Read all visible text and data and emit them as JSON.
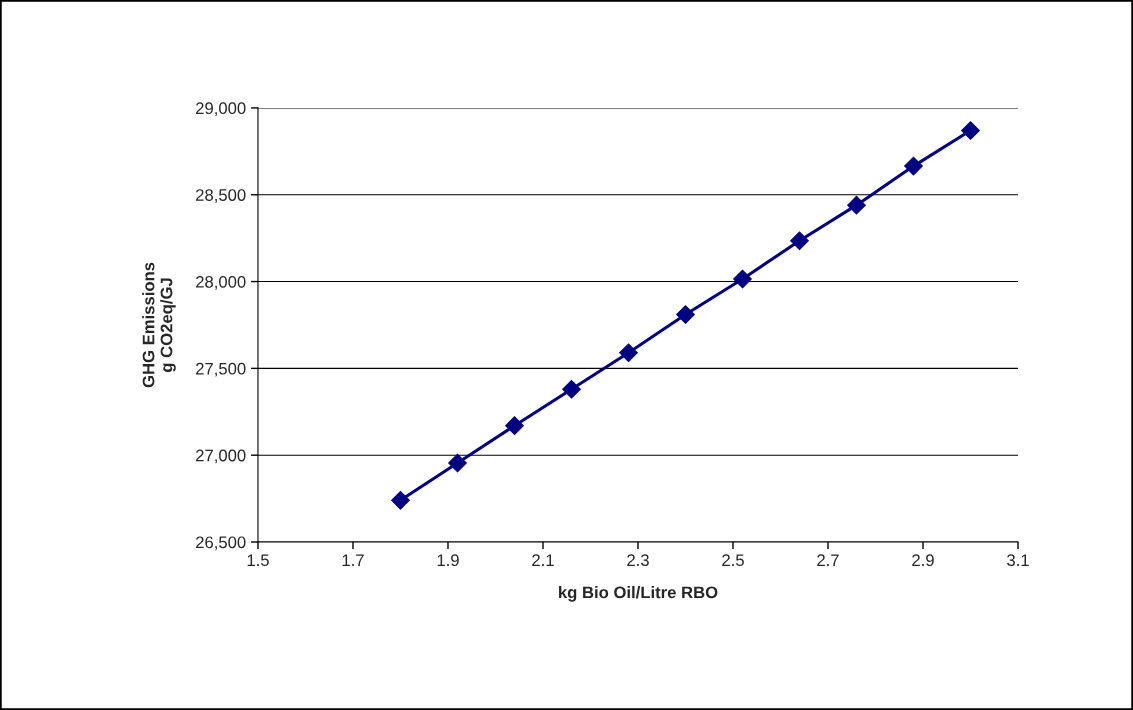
{
  "chart_data": {
    "type": "line",
    "xlabel": "kg Bio Oil/Litre RBO",
    "ylabel": "GHG Emissions\ng CO2eq/GJ",
    "x": [
      1.8,
      1.92,
      2.04,
      2.16,
      2.28,
      2.4,
      2.52,
      2.64,
      2.76,
      2.88,
      3.0
    ],
    "series": [
      {
        "color": "#000080",
        "values": [
          26740,
          26955,
          27170,
          27380,
          27590,
          27810,
          28015,
          28235,
          28440,
          28665,
          28870
        ]
      }
    ],
    "xlim": [
      1.5,
      3.1
    ],
    "xticks": [
      1.5,
      1.7,
      1.9,
      2.1,
      2.3,
      2.5,
      2.7,
      2.9,
      3.1
    ],
    "ylim": [
      26500,
      29000
    ],
    "yticks": [
      {
        "value": 26500,
        "label": "26,500"
      },
      {
        "value": 27000,
        "label": "27,000"
      },
      {
        "value": 27500,
        "label": "27,500"
      },
      {
        "value": 28000,
        "label": "28,000"
      },
      {
        "value": 28500,
        "label": "28,500"
      },
      {
        "value": 29000,
        "label": "29,000"
      }
    ],
    "grid": "y",
    "marker": "diamond",
    "line_style": "solid",
    "legend": false
  }
}
